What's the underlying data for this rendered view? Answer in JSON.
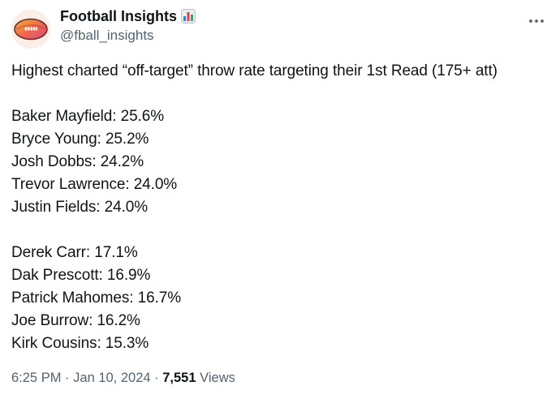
{
  "author": {
    "display_name": "Football Insights",
    "handle": "@fball_insights",
    "avatar_icon": "football-icon",
    "badge_icon": "bar-chart-emoji-icon"
  },
  "menu": {
    "more_icon": "more-options-icon"
  },
  "tweet": {
    "headline": "Highest charted “off-target” throw rate targeting their 1st Read (175+ att)",
    "group_high": [
      "Baker Mayfield: 25.6%",
      "Bryce Young: 25.2%",
      "Josh Dobbs: 24.2%",
      "Trevor Lawrence: 24.0%",
      "Justin Fields: 24.0%"
    ],
    "group_low": [
      "Derek Carr: 17.1%",
      "Dak Prescott: 16.9%",
      "Patrick Mahomes: 16.7%",
      "Joe Burrow: 16.2%",
      "Kirk Cousins: 15.3%"
    ]
  },
  "meta": {
    "time": "6:25 PM",
    "separator": "·",
    "date": "Jan 10, 2024",
    "views_count": "7,551",
    "views_label": "Views"
  },
  "colors": {
    "text": "#0f1419",
    "secondary": "#536471"
  }
}
